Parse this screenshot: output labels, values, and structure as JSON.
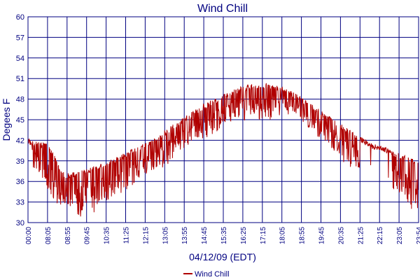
{
  "chart_data": {
    "type": "line",
    "title": "Wind Chill",
    "xlabel": "04/12/09 (EDT)",
    "ylabel": "Degees F",
    "ylim": [
      30,
      60
    ],
    "yticks": [
      "30",
      "33",
      "36",
      "39",
      "42",
      "45",
      "48",
      "51",
      "54",
      "57",
      "60"
    ],
    "xticks": [
      "00:00",
      "08:05",
      "08:55",
      "09:45",
      "10:35",
      "11:25",
      "12:15",
      "13:05",
      "13:55",
      "14:45",
      "15:35",
      "16:25",
      "17:15",
      "18:05",
      "18:55",
      "19:45",
      "20:35",
      "21:25",
      "22:15",
      "23:05",
      "23:54"
    ],
    "grid": true,
    "legend_position": "bottom-center",
    "series": [
      {
        "name": "Wind Chill",
        "color": "#b00000",
        "profile": [
          {
            "x": 0.0,
            "y": 42.2
          },
          {
            "x": 0.5,
            "y": 41.8
          },
          {
            "x": 1.0,
            "y": 41.5
          },
          {
            "x": 1.8,
            "y": 37.1
          },
          {
            "x": 2.5,
            "y": 37.6
          },
          {
            "x": 3.0,
            "y": 38.0
          },
          {
            "x": 3.5,
            "y": 38.5
          },
          {
            "x": 4.0,
            "y": 39.0
          },
          {
            "x": 4.5,
            "y": 39.7
          },
          {
            "x": 5.0,
            "y": 40.5
          },
          {
            "x": 5.5,
            "y": 41.2
          },
          {
            "x": 6.0,
            "y": 42.0
          },
          {
            "x": 6.5,
            "y": 43.0
          },
          {
            "x": 7.0,
            "y": 44.0
          },
          {
            "x": 7.5,
            "y": 45.0
          },
          {
            "x": 8.0,
            "y": 46.0
          },
          {
            "x": 8.5,
            "y": 47.0
          },
          {
            "x": 9.0,
            "y": 47.8
          },
          {
            "x": 9.5,
            "y": 48.5
          },
          {
            "x": 10.0,
            "y": 49.2
          },
          {
            "x": 10.5,
            "y": 49.8
          },
          {
            "x": 11.0,
            "y": 50.2
          },
          {
            "x": 11.5,
            "y": 50.4
          },
          {
            "x": 12.0,
            "y": 50.3
          },
          {
            "x": 12.5,
            "y": 49.8
          },
          {
            "x": 13.0,
            "y": 49.2
          },
          {
            "x": 13.5,
            "y": 48.3
          },
          {
            "x": 14.0,
            "y": 47.3
          },
          {
            "x": 14.5,
            "y": 46.3
          },
          {
            "x": 15.0,
            "y": 45.3
          },
          {
            "x": 15.5,
            "y": 44.3
          },
          {
            "x": 16.0,
            "y": 43.3
          },
          {
            "x": 16.5,
            "y": 42.4
          },
          {
            "x": 17.0,
            "y": 41.5
          },
          {
            "x": 17.5,
            "y": 41.2
          },
          {
            "x": 18.0,
            "y": 40.5
          },
          {
            "x": 18.5,
            "y": 39.9
          },
          {
            "x": 19.0,
            "y": 39.3
          },
          {
            "x": 19.3,
            "y": 39.0
          }
        ],
        "dips": [
          {
            "x": 0.3,
            "y": 38.0
          },
          {
            "x": 1.5,
            "y": 32.0
          },
          {
            "x": 2.0,
            "y": 32.5
          },
          {
            "x": 2.6,
            "y": 30.8
          },
          {
            "x": 3.0,
            "y": 32.0
          },
          {
            "x": 3.3,
            "y": 31.3
          },
          {
            "x": 3.7,
            "y": 33.0
          },
          {
            "x": 4.5,
            "y": 34.0
          },
          {
            "x": 5.0,
            "y": 35.0
          },
          {
            "x": 5.8,
            "y": 37.0
          },
          {
            "x": 6.7,
            "y": 38.0
          },
          {
            "x": 7.5,
            "y": 40.0
          },
          {
            "x": 8.2,
            "y": 42.0
          },
          {
            "x": 9.0,
            "y": 42.5
          },
          {
            "x": 9.8,
            "y": 43.8
          },
          {
            "x": 10.3,
            "y": 44.0
          },
          {
            "x": 11.0,
            "y": 45.0
          },
          {
            "x": 11.8,
            "y": 44.8
          },
          {
            "x": 12.5,
            "y": 45.2
          },
          {
            "x": 13.2,
            "y": 46.0
          },
          {
            "x": 13.8,
            "y": 44.0
          },
          {
            "x": 14.5,
            "y": 42.0
          },
          {
            "x": 15.3,
            "y": 40.0
          },
          {
            "x": 15.8,
            "y": 38.0
          },
          {
            "x": 16.3,
            "y": 38.0
          },
          {
            "x": 17.5,
            "y": 36.5
          },
          {
            "x": 18.2,
            "y": 34.5
          },
          {
            "x": 18.6,
            "y": 33.2
          },
          {
            "x": 18.9,
            "y": 31.8
          }
        ]
      }
    ]
  }
}
